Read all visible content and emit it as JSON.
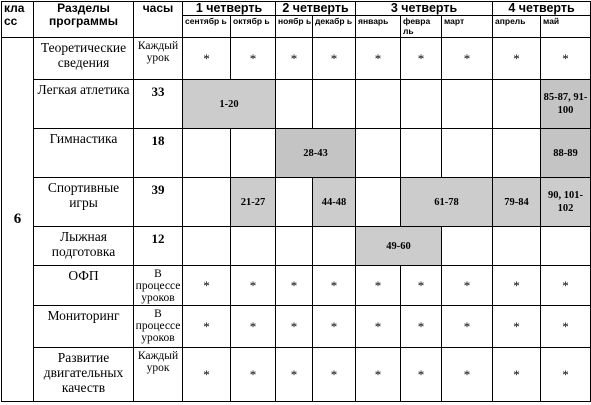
{
  "header": {
    "class_label": "кла сс",
    "sections_label": "Разделы программы",
    "hours_label": "часы",
    "quarters": [
      "1 четверть",
      "2 четверть",
      "3 четверть",
      "4 четверть"
    ],
    "months": [
      "сентябр ь",
      "октябр ь",
      "ноябр ь",
      "декабр ь",
      "январь",
      "февра ль",
      "март",
      "апрель",
      "май"
    ]
  },
  "grade": "6",
  "rows": [
    {
      "section": "Теоретические сведения",
      "hours": "Каждый урок",
      "star": "*"
    },
    {
      "section": "Легкая атлетика",
      "hours": "33",
      "block1": "1-20",
      "block2": "85-87, 91-100"
    },
    {
      "section": "Гимнастика",
      "hours": "18",
      "block1": "28-43",
      "block2": "88-89"
    },
    {
      "section": "Спортивные игры",
      "hours": "39",
      "block1": "21-27",
      "block2": "44-48",
      "block3": "61-78",
      "block4": "79-84",
      "block5": "90, 101-102"
    },
    {
      "section": "Лыжная подготовка",
      "hours": "12",
      "block1": "49-60"
    },
    {
      "section": "ОФП",
      "hours": "В процессе уроков",
      "star": "*"
    },
    {
      "section": "Мониторинг",
      "hours": "В процессе уроков",
      "star": "*"
    },
    {
      "section": "Развитие двигательных качеств",
      "hours": "Каждый урок",
      "star": "*"
    }
  ]
}
